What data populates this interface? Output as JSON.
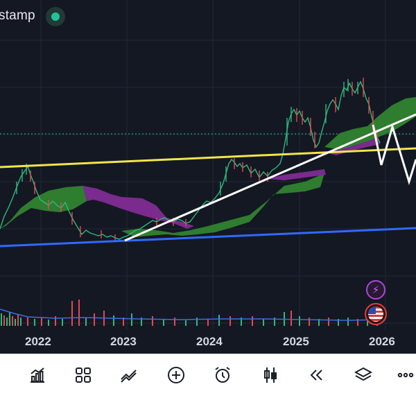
{
  "header": {
    "title": "stamp"
  },
  "x_axis": {
    "years": [
      "2022",
      "2023",
      "2024",
      "2025",
      "2026"
    ]
  },
  "colors": {
    "background": "#141823",
    "up_candle": "#2fb87e",
    "down_candle": "#e5484d",
    "cloud_bull": "#2f7d2f",
    "cloud_bear": "#7b2a8e",
    "trend_yellow": "#f2e64a",
    "trend_blue": "#2e6bff",
    "trend_white": "#ffffff",
    "status_green": "#22c39a"
  },
  "toolbar": {
    "items": [
      {
        "name": "indicators",
        "icon": "chart-bars-icon"
      },
      {
        "name": "layout",
        "icon": "grid-icon"
      },
      {
        "name": "drawings",
        "icon": "trend-line-icon"
      },
      {
        "name": "add",
        "icon": "plus-circle-icon"
      },
      {
        "name": "alert",
        "icon": "alarm-clock-icon"
      },
      {
        "name": "chart-type",
        "icon": "candles-icon"
      },
      {
        "name": "replay",
        "icon": "rewind-icon"
      },
      {
        "name": "layers",
        "icon": "layers-icon"
      },
      {
        "name": "more",
        "icon": "more-dots-icon"
      }
    ]
  }
}
